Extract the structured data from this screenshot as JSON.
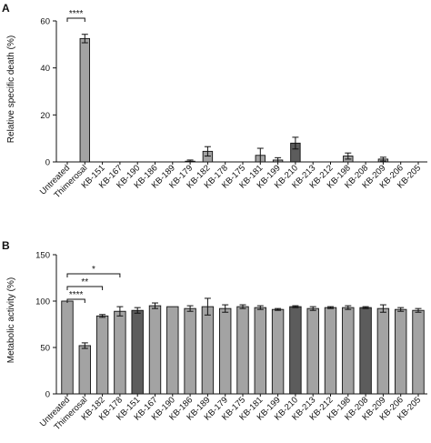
{
  "figure": {
    "background": "#ffffff",
    "bar_colors": {
      "light": "#a3a3a3",
      "dark": "#5c5c5c"
    }
  },
  "chart_data": [
    {
      "panel": "A",
      "type": "bar",
      "ylabel": "Relative specific death (%)",
      "ylim": [
        0,
        60
      ],
      "yticks": [
        0,
        20,
        40,
        60
      ],
      "grid": false,
      "categories": [
        "Untreated",
        "Thimerosal",
        "KB-151",
        "KB-167",
        "KB-190",
        "KB-186",
        "KB-189",
        "KB-179",
        "KB-182",
        "KB-178",
        "KB-175",
        "KB-181",
        "KB-199",
        "KB-210",
        "KB-213",
        "KB-212",
        "KB-198",
        "KB-208",
        "KB-209",
        "KB-206",
        "KB-205"
      ],
      "values": [
        0,
        52.5,
        0,
        0,
        0,
        0,
        0,
        0.3,
        4.5,
        0,
        0,
        2.8,
        0.8,
        8.0,
        0,
        0,
        2.5,
        0,
        1.2,
        0,
        0
      ],
      "errors": [
        0,
        1.8,
        0,
        0,
        0,
        0,
        0,
        0.5,
        2.0,
        0,
        0,
        3.0,
        1.0,
        2.5,
        0,
        0,
        1.3,
        0,
        0.8,
        0,
        0
      ],
      "shade": [
        "light",
        "light",
        "light",
        "light",
        "light",
        "light",
        "light",
        "light",
        "light",
        "light",
        "light",
        "light",
        "light",
        "dark",
        "light",
        "light",
        "light",
        "light",
        "light",
        "light",
        "light"
      ],
      "significance": [
        {
          "from": 0,
          "to": 1,
          "label": "****"
        }
      ]
    },
    {
      "panel": "B",
      "type": "bar",
      "ylabel": "Metabolic activity (%)",
      "ylim": [
        0,
        150
      ],
      "yticks": [
        0,
        50,
        100,
        150
      ],
      "grid": false,
      "categories": [
        "Untreated",
        "Thimerosal",
        "KB-182",
        "KB-178",
        "KB-151",
        "KB-167",
        "KB-190",
        "KB-186",
        "KB-189",
        "KB-179",
        "KB-175",
        "KB-181",
        "KB-199",
        "KB-210",
        "KB-213",
        "KB-212",
        "KB-198",
        "KB-208",
        "KB-209",
        "KB-206",
        "KB-205"
      ],
      "values": [
        100,
        52,
        84,
        89,
        90,
        95,
        94,
        92,
        94,
        92,
        94,
        93,
        91,
        94,
        92,
        93,
        93,
        93,
        92,
        91,
        90
      ],
      "errors": [
        0,
        3,
        1.5,
        5,
        3,
        3,
        0,
        3,
        9,
        4,
        2,
        2,
        1,
        1,
        2,
        1,
        2,
        1,
        4,
        2,
        2
      ],
      "shade": [
        "light",
        "light",
        "light",
        "light",
        "dark",
        "light",
        "light",
        "light",
        "light",
        "light",
        "light",
        "light",
        "light",
        "dark",
        "light",
        "light",
        "light",
        "dark",
        "light",
        "light",
        "light"
      ],
      "significance": [
        {
          "from": 0,
          "to": 1,
          "label": "****"
        },
        {
          "from": 0,
          "to": 2,
          "label": "**"
        },
        {
          "from": 0,
          "to": 3,
          "label": "*"
        }
      ]
    }
  ]
}
